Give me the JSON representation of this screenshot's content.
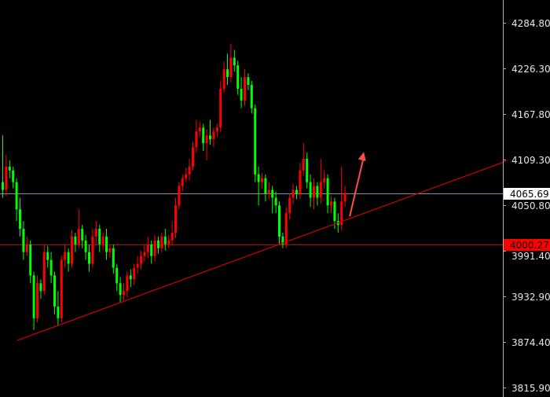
{
  "chart_data": {
    "type": "candlestick",
    "title": "",
    "ylim": [
      3815.9,
      4284.8
    ],
    "y_ticks": [
      "4284.80",
      "4226.30",
      "4167.80",
      "4109.30",
      "4050.80",
      "3991.40",
      "3932.90",
      "3874.40",
      "3815.90"
    ],
    "y_tick_values": [
      4284.8,
      4226.3,
      4167.8,
      4109.3,
      4050.8,
      3991.4,
      3932.9,
      3874.4,
      3815.9
    ],
    "colors": {
      "background": "#000000",
      "up": "#ff0000",
      "down": "#00ff00",
      "axis": "#b0b0b0",
      "text": "#e6e6e6"
    },
    "open": [
      4080,
      4070,
      4100,
      4095,
      4080,
      4045,
      4020,
      3990,
      4000,
      3960,
      3905,
      3950,
      3940,
      3990,
      3980,
      3960,
      3920,
      3905,
      3980,
      3990,
      3975,
      4010,
      4000,
      4020,
      4005,
      3990,
      3975,
      4010,
      4020,
      4000,
      4010,
      3990,
      3995,
      3970,
      3950,
      3935,
      3940,
      3960,
      3955,
      3970,
      3975,
      3985,
      3990,
      4000,
      3985,
      4005,
      3995,
      4010,
      4000,
      4005,
      4015,
      4050,
      4075,
      4085,
      4090,
      4100,
      4125,
      4145,
      4150,
      4130,
      4140,
      4135,
      4145,
      4150,
      4200,
      4225,
      4215,
      4240,
      4230,
      4200,
      4185,
      4215,
      4205,
      4175,
      4090,
      4080,
      4085,
      4065,
      4070,
      4060,
      4050,
      4010,
      4000,
      4040,
      4060,
      4070,
      4065,
      4095,
      4110,
      4080,
      4060,
      4075,
      4060,
      4080,
      4085,
      4050,
      4055,
      4030,
      4025,
      4055
    ],
    "high": [
      4140,
      4115,
      4108,
      4100,
      4085,
      4060,
      4030,
      4010,
      4005,
      3965,
      3960,
      3955,
      4000,
      3998,
      3990,
      3965,
      3940,
      3985,
      4000,
      3995,
      4018,
      4015,
      4045,
      4025,
      4012,
      4000,
      4020,
      4030,
      4025,
      4015,
      4020,
      4000,
      4000,
      3975,
      3958,
      3950,
      3965,
      3968,
      3975,
      3985,
      3992,
      4000,
      4010,
      4005,
      4012,
      4010,
      4015,
      4020,
      4012,
      4030,
      4060,
      4080,
      4090,
      4098,
      4110,
      4132,
      4160,
      4158,
      4155,
      4148,
      4160,
      4150,
      4155,
      4210,
      4235,
      4245,
      4258,
      4250,
      4236,
      4215,
      4225,
      4220,
      4210,
      4180,
      4100,
      4092,
      4090,
      4080,
      4075,
      4068,
      4055,
      4015,
      4048,
      4065,
      4078,
      4075,
      4105,
      4130,
      4118,
      4090,
      4085,
      4080,
      4110,
      4095,
      4090,
      4062,
      4060,
      4040,
      4100,
      4075
    ],
    "low": [
      4060,
      4062,
      4085,
      4072,
      4030,
      4010,
      3980,
      3985,
      3950,
      3890,
      3900,
      3930,
      3935,
      3970,
      3950,
      3910,
      3895,
      3900,
      3970,
      3965,
      3970,
      3990,
      3995,
      3995,
      3980,
      3965,
      3970,
      4000,
      3990,
      3992,
      3980,
      3982,
      3962,
      3940,
      3925,
      3928,
      3932,
      3945,
      3948,
      3962,
      3968,
      3978,
      3982,
      3975,
      3978,
      3988,
      3990,
      3992,
      3995,
      3998,
      4008,
      4045,
      4068,
      4080,
      4082,
      4095,
      4118,
      4138,
      4120,
      4108,
      4128,
      4125,
      4138,
      4145,
      4195,
      4205,
      4208,
      4222,
      4192,
      4175,
      4178,
      4198,
      4168,
      4080,
      4050,
      4072,
      4055,
      4058,
      4040,
      4040,
      4000,
      3995,
      3995,
      4032,
      4052,
      4058,
      4058,
      4088,
      4072,
      4048,
      4045,
      4050,
      4052,
      4072,
      4040,
      4040,
      4020,
      4015,
      4018,
      4048
    ],
    "close": [
      4070,
      4100,
      4095,
      4080,
      4045,
      4020,
      3990,
      4000,
      3960,
      3905,
      3950,
      3940,
      3990,
      3980,
      3960,
      3920,
      3905,
      3980,
      3990,
      3975,
      4010,
      4000,
      4020,
      4005,
      3990,
      3975,
      4010,
      4020,
      4000,
      4010,
      3990,
      3995,
      3970,
      3950,
      3935,
      3940,
      3960,
      3955,
      3970,
      3975,
      3985,
      3990,
      4000,
      3985,
      4005,
      3995,
      4010,
      4000,
      4005,
      4015,
      4050,
      4075,
      4085,
      4090,
      4100,
      4125,
      4145,
      4150,
      4130,
      4140,
      4135,
      4145,
      4150,
      4200,
      4225,
      4215,
      4240,
      4230,
      4200,
      4185,
      4215,
      4205,
      4175,
      4090,
      4080,
      4085,
      4065,
      4070,
      4060,
      4050,
      4010,
      4000,
      4040,
      4060,
      4070,
      4065,
      4095,
      4110,
      4080,
      4060,
      4075,
      4060,
      4080,
      4085,
      4050,
      4055,
      4030,
      4025,
      4055,
      4066
    ],
    "price_lines": [
      {
        "label": "4065.69",
        "value": 4065.69,
        "color": "#7f8fa6",
        "label_bg": "#ffffff",
        "label_color": "#000000"
      },
      {
        "label": "4000.27",
        "value": 4000.27,
        "color": "#c00000",
        "label_bg": "#ff0000",
        "label_color": "#000000"
      }
    ],
    "trendline": {
      "from": {
        "index": 4.5,
        "price": 3876.5
      },
      "to": {
        "index": 146,
        "price": 4107
      },
      "color": "#c00000"
    },
    "arrow": {
      "from": {
        "index": 100.7,
        "price": 4036
      },
      "to": {
        "index": 104.8,
        "price": 4119
      },
      "color": "#ff4d4d"
    }
  }
}
